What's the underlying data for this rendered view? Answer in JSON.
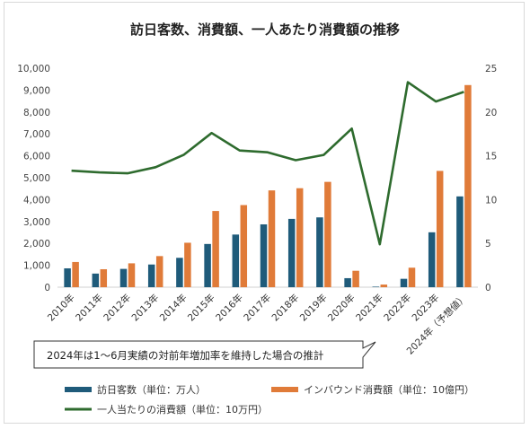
{
  "chart_data": {
    "type": "bar",
    "title": "訪日客数、消費額、一人あたり消費額の推移",
    "categories": [
      "2010年",
      "2011年",
      "2012年",
      "2013年",
      "2014年",
      "2015年",
      "2016年",
      "2017年",
      "2018年",
      "2019年",
      "2020年",
      "2021年",
      "2022年",
      "2023年",
      "2024年（予想値）"
    ],
    "series": [
      {
        "name": "訪日客数（単位：万人）",
        "type": "bar",
        "axis": "left",
        "color": "#1f5b7a",
        "values": [
          861,
          622,
          836,
          1036,
          1341,
          1974,
          2404,
          2869,
          3119,
          3188,
          412,
          25,
          383,
          2507,
          4146
        ]
      },
      {
        "name": "インバウンド消費額（単位：10億円）",
        "type": "bar",
        "axis": "left",
        "color": "#e07b39",
        "values": [
          1150,
          820,
          1090,
          1420,
          2030,
          3480,
          3750,
          4420,
          4520,
          4810,
          750,
          120,
          890,
          5310,
          9230
        ]
      },
      {
        "name": "一人当たりの消費額（単位：10万円）",
        "type": "line",
        "axis": "right",
        "color": "#2e6b2e",
        "values": [
          13.3,
          13.1,
          13.0,
          13.7,
          15.1,
          17.6,
          15.6,
          15.4,
          14.5,
          15.1,
          18.1,
          4.9,
          23.4,
          21.2,
          22.3
        ]
      }
    ],
    "left_axis": {
      "min": 0,
      "max": 10000,
      "step": 1000
    },
    "right_axis": {
      "min": 0,
      "max": 25,
      "step": 5
    },
    "grid": false,
    "legend_position": "bottom",
    "annotation": "2024年は1～6月実績の対前年増加率を維持した場合の推計"
  }
}
